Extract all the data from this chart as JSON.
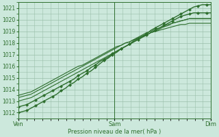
{
  "bg_color": "#cce8dc",
  "grid_color": "#9abfaa",
  "line_color": "#2d6e2d",
  "ylim": [
    1011.5,
    1021.5
  ],
  "yticks": [
    1012,
    1013,
    1014,
    1015,
    1016,
    1017,
    1018,
    1019,
    1020,
    1021
  ],
  "xlabel": "Pression niveau de la mer( hPa )",
  "xtick_labels": [
    "Ven",
    "Sam",
    "Dim"
  ],
  "xtick_positions": [
    0,
    48,
    96
  ],
  "total_hours": 96,
  "lines": [
    {
      "values": [
        1012.0,
        1012.1,
        1012.2,
        1012.4,
        1012.6,
        1012.8,
        1013.0,
        1013.2,
        1013.4,
        1013.6,
        1013.9,
        1014.1,
        1014.4,
        1014.6,
        1014.9,
        1015.1,
        1015.4,
        1015.6,
        1015.9,
        1016.2,
        1016.5,
        1016.7,
        1017.0,
        1017.2,
        1017.5,
        1017.7,
        1017.9,
        1018.2,
        1018.4,
        1018.6,
        1018.8,
        1019.1,
        1019.3,
        1019.5,
        1019.7,
        1019.9,
        1020.1,
        1020.3,
        1020.5,
        1020.7,
        1020.9,
        1021.1,
        1021.2,
        1021.3,
        1021.3,
        1021.3
      ],
      "markers": true,
      "lw": 1.0
    },
    {
      "values": [
        1012.5,
        1012.6,
        1012.7,
        1012.9,
        1013.1,
        1013.3,
        1013.5,
        1013.7,
        1013.9,
        1014.1,
        1014.3,
        1014.5,
        1014.7,
        1014.9,
        1015.2,
        1015.4,
        1015.6,
        1015.9,
        1016.1,
        1016.4,
        1016.6,
        1016.8,
        1017.1,
        1017.3,
        1017.5,
        1017.7,
        1017.9,
        1018.1,
        1018.3,
        1018.5,
        1018.7,
        1018.9,
        1019.1,
        1019.3,
        1019.5,
        1019.7,
        1019.9,
        1020.1,
        1020.3,
        1020.4,
        1020.5,
        1020.6,
        1020.6,
        1020.6,
        1020.6,
        1020.6
      ],
      "markers": true,
      "lw": 1.0
    },
    {
      "values": [
        1013.0,
        1013.1,
        1013.2,
        1013.3,
        1013.5,
        1013.7,
        1013.9,
        1014.1,
        1014.3,
        1014.5,
        1014.7,
        1014.9,
        1015.1,
        1015.3,
        1015.5,
        1015.7,
        1015.9,
        1016.1,
        1016.3,
        1016.5,
        1016.7,
        1016.9,
        1017.1,
        1017.3,
        1017.5,
        1017.7,
        1017.9,
        1018.1,
        1018.3,
        1018.5,
        1018.7,
        1018.9,
        1019.0,
        1019.2,
        1019.4,
        1019.5,
        1019.7,
        1019.8,
        1019.9,
        1020.0,
        1020.1,
        1020.1,
        1020.1,
        1020.1,
        1020.1,
        1020.1
      ],
      "markers": false,
      "lw": 0.8
    },
    {
      "values": [
        1013.3,
        1013.4,
        1013.5,
        1013.6,
        1013.8,
        1014.0,
        1014.2,
        1014.4,
        1014.6,
        1014.8,
        1015.0,
        1015.2,
        1015.4,
        1015.6,
        1015.8,
        1016.0,
        1016.2,
        1016.4,
        1016.6,
        1016.8,
        1017.0,
        1017.2,
        1017.4,
        1017.6,
        1017.8,
        1018.0,
        1018.1,
        1018.3,
        1018.5,
        1018.7,
        1018.9,
        1019.0,
        1019.2,
        1019.3,
        1019.5,
        1019.6,
        1019.7,
        1019.8,
        1019.9,
        1020.0,
        1020.1,
        1020.1,
        1020.1,
        1020.1,
        1020.1,
        1020.1
      ],
      "markers": false,
      "lw": 0.8
    },
    {
      "values": [
        1013.5,
        1013.6,
        1013.7,
        1013.8,
        1014.0,
        1014.2,
        1014.4,
        1014.6,
        1014.8,
        1015.0,
        1015.2,
        1015.4,
        1015.6,
        1015.8,
        1016.0,
        1016.1,
        1016.3,
        1016.5,
        1016.7,
        1016.9,
        1017.1,
        1017.3,
        1017.5,
        1017.7,
        1017.8,
        1018.0,
        1018.1,
        1018.3,
        1018.4,
        1018.6,
        1018.7,
        1018.9,
        1019.0,
        1019.1,
        1019.2,
        1019.3,
        1019.4,
        1019.5,
        1019.6,
        1019.6,
        1019.7,
        1019.7,
        1019.7,
        1019.7,
        1019.7,
        1019.7
      ],
      "markers": false,
      "lw": 0.8
    }
  ]
}
